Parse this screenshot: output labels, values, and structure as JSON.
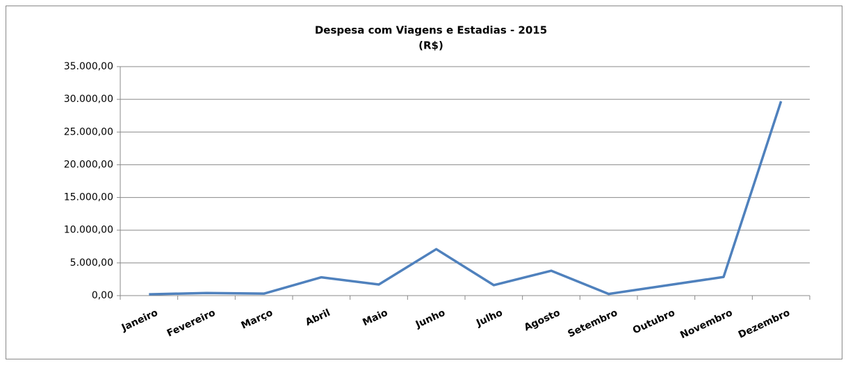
{
  "chart_data": {
    "type": "line",
    "title": "Despesa com Viagens e Estadias - 2015",
    "subtitle": "(R$)",
    "categories": [
      "Janeiro",
      "Fevereiro",
      "Março",
      "Abril",
      "Maio",
      "Junho",
      "Julho",
      "Agosto",
      "Setembro",
      "Outubro",
      "Novembro",
      "Dezembro"
    ],
    "series": [
      {
        "name": "Despesa",
        "color": "#4f81bd",
        "values": [
          200,
          400,
          300,
          2800,
          1700,
          7100,
          1600,
          3800,
          250,
          1550,
          2850,
          29700
        ]
      }
    ],
    "ylim": [
      0,
      35000
    ],
    "yticks": [
      {
        "value": 0,
        "label": "0,00"
      },
      {
        "value": 5000,
        "label": "5.000,00"
      },
      {
        "value": 10000,
        "label": "10.000,00"
      },
      {
        "value": 15000,
        "label": "15.000,00"
      },
      {
        "value": 20000,
        "label": "20.000,00"
      },
      {
        "value": 25000,
        "label": "25.000,00"
      },
      {
        "value": 30000,
        "label": "30.000,00"
      },
      {
        "value": 35000,
        "label": "35.000,00"
      }
    ],
    "grid": true
  }
}
